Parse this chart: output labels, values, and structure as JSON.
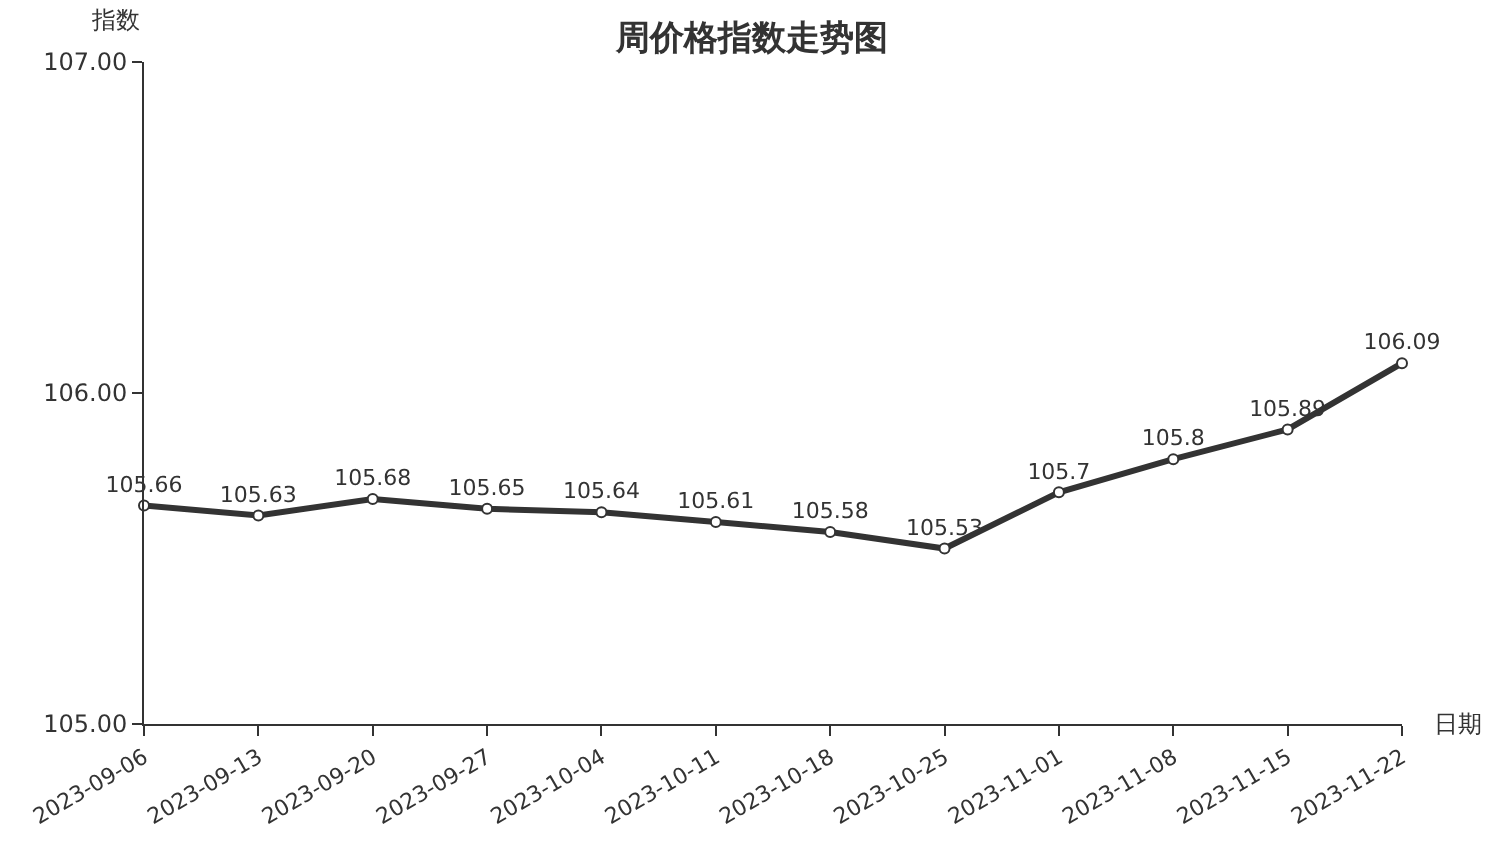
{
  "chart_data": {
    "type": "line",
    "title": "周价格指数走势图",
    "xlabel": "日期",
    "ylabel": "指数",
    "categories": [
      "2023-09-06",
      "2023-09-13",
      "2023-09-20",
      "2023-09-27",
      "2023-10-04",
      "2023-10-11",
      "2023-10-18",
      "2023-10-25",
      "2023-11-01",
      "2023-11-08",
      "2023-11-15",
      "2023-11-22"
    ],
    "series": [
      {
        "color": "#333333",
        "values": [
          105.66,
          105.63,
          105.68,
          105.65,
          105.64,
          105.61,
          105.58,
          105.53,
          105.7,
          105.8,
          105.89,
          106.09
        ]
      }
    ],
    "ylim": [
      105,
      107
    ],
    "yticks": [
      {
        "value": 105,
        "label": "105.00"
      },
      {
        "value": 106,
        "label": "106.00"
      },
      {
        "value": 107,
        "label": "107.00"
      }
    ],
    "grid": false,
    "marker": "circle",
    "line_style": "solid",
    "data_labels": true
  }
}
